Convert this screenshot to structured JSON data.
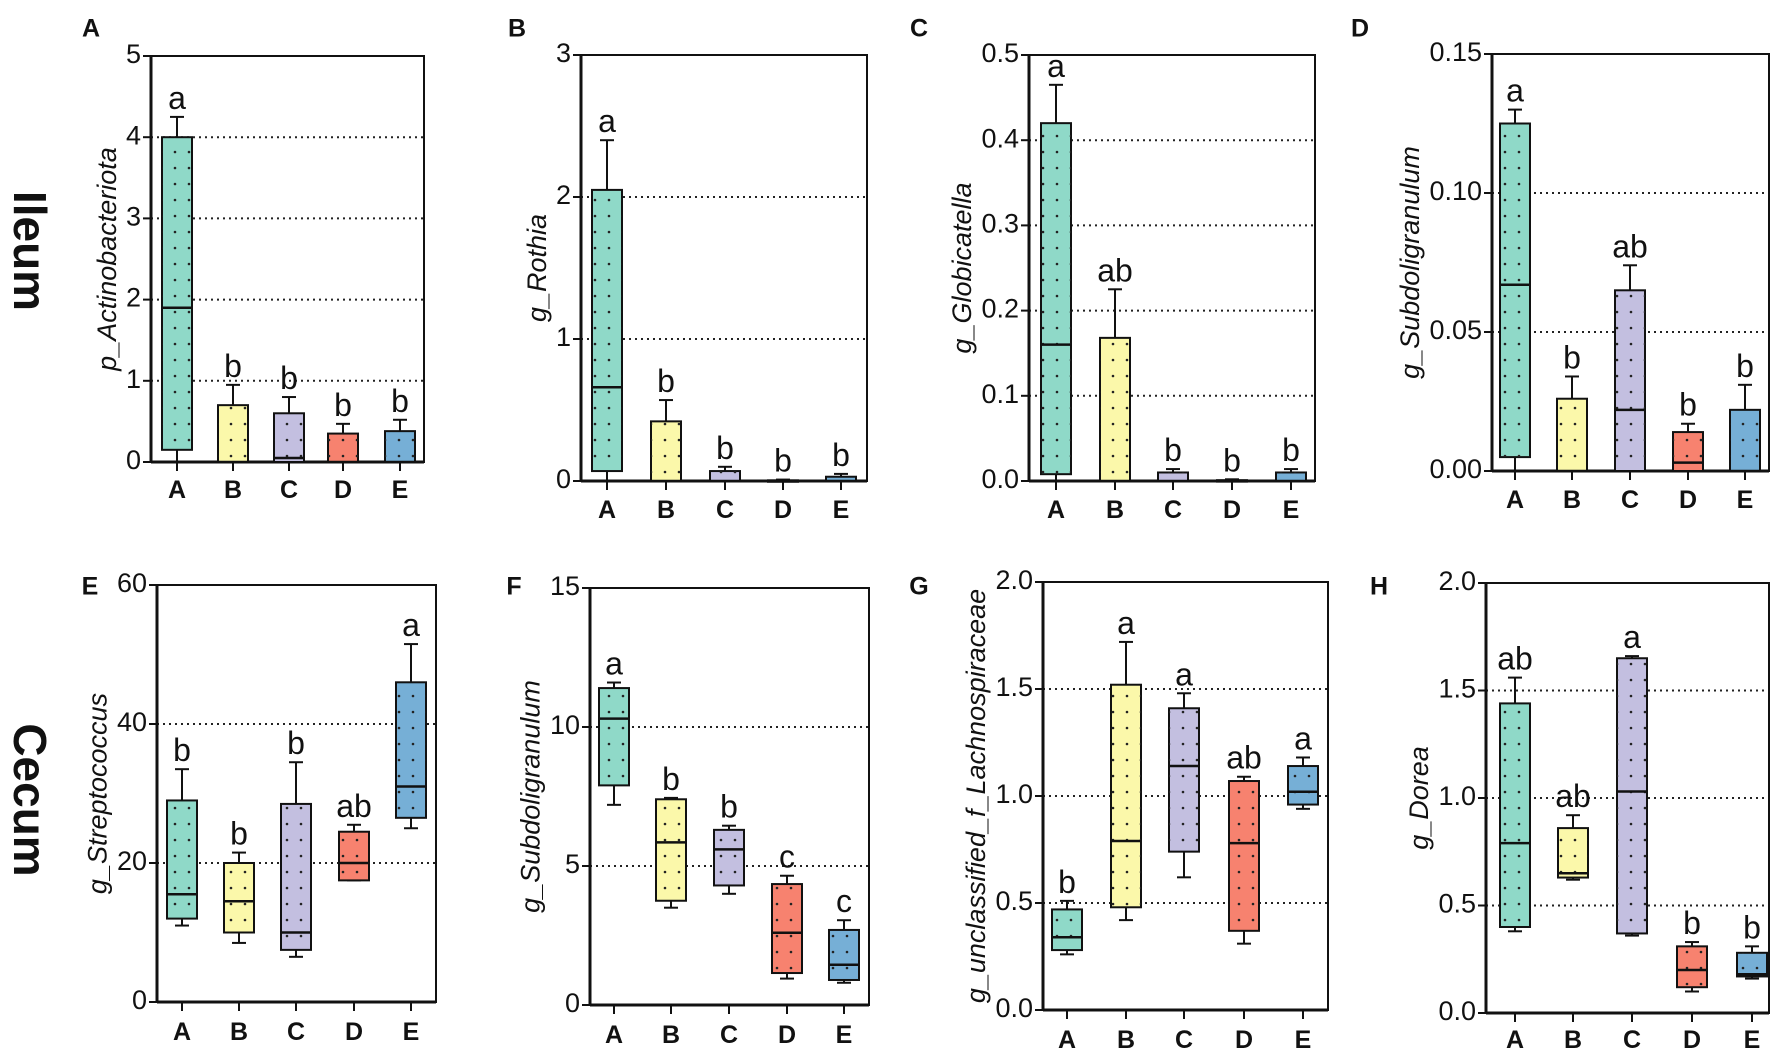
{
  "row_labels": [
    "Ileum",
    "Cecum"
  ],
  "group_colors": {
    "A": "#8fd9c8",
    "B": "#fbf8aa",
    "C": "#c3bfe0",
    "D": "#f7826f",
    "E": "#76afd6"
  },
  "chart_data": [
    {
      "type": "box",
      "panel": "A",
      "ylabel": "p_Actinobacteriota",
      "ylim": [
        0,
        5
      ],
      "yticks": [
        "0",
        "1",
        "2",
        "3",
        "4",
        "5"
      ],
      "ytick_values": [
        0,
        1,
        2,
        3,
        4,
        5
      ],
      "grid": [
        1,
        2,
        3,
        4
      ],
      "categories": [
        "A",
        "B",
        "C",
        "D",
        "E"
      ],
      "boxes": [
        {
          "min": 0,
          "q1": 0.15,
          "median": 1.9,
          "q3": 4.0,
          "max": 4.25,
          "letter": "a"
        },
        {
          "min": 0,
          "q1": 0,
          "median": 0,
          "q3": 0.7,
          "max": 0.95,
          "letter": "b"
        },
        {
          "min": 0,
          "q1": 0,
          "median": 0.05,
          "q3": 0.6,
          "max": 0.8,
          "letter": "b"
        },
        {
          "min": 0,
          "q1": 0,
          "median": 0,
          "q3": 0.35,
          "max": 0.47,
          "letter": "b"
        },
        {
          "min": 0,
          "q1": 0,
          "median": 0,
          "q3": 0.38,
          "max": 0.52,
          "letter": "b"
        }
      ]
    },
    {
      "type": "box",
      "panel": "B",
      "ylabel": "g_Rothia",
      "ylim": [
        0,
        3
      ],
      "yticks": [
        "0",
        "1",
        "2",
        "3"
      ],
      "ytick_values": [
        0,
        1,
        2,
        3
      ],
      "grid": [
        1,
        2
      ],
      "categories": [
        "A",
        "B",
        "C",
        "D",
        "E"
      ],
      "boxes": [
        {
          "min": 0,
          "q1": 0.07,
          "median": 0.66,
          "q3": 2.05,
          "max": 2.4,
          "letter": "a"
        },
        {
          "min": 0,
          "q1": 0,
          "median": 0,
          "q3": 0.42,
          "max": 0.57,
          "letter": "b"
        },
        {
          "min": 0,
          "q1": 0,
          "median": 0,
          "q3": 0.07,
          "max": 0.1,
          "letter": "b"
        },
        {
          "min": 0,
          "q1": 0,
          "median": 0,
          "q3": 0.005,
          "max": 0.01,
          "letter": "b"
        },
        {
          "min": 0,
          "q1": 0,
          "median": 0,
          "q3": 0.03,
          "max": 0.05,
          "letter": "b"
        }
      ]
    },
    {
      "type": "box",
      "panel": "C",
      "ylabel": "g_Globicatella",
      "ylim": [
        0,
        0.5
      ],
      "yticks": [
        "0.0",
        "0.1",
        "0.2",
        "0.3",
        "0.4",
        "0.5"
      ],
      "ytick_values": [
        0,
        0.1,
        0.2,
        0.3,
        0.4,
        0.5
      ],
      "grid": [
        0.1,
        0.2,
        0.3,
        0.4
      ],
      "categories": [
        "A",
        "B",
        "C",
        "D",
        "E"
      ],
      "boxes": [
        {
          "min": 0,
          "q1": 0.008,
          "median": 0.16,
          "q3": 0.42,
          "max": 0.465,
          "letter": "a"
        },
        {
          "min": 0,
          "q1": 0,
          "median": 0,
          "q3": 0.168,
          "max": 0.225,
          "letter": "ab"
        },
        {
          "min": 0,
          "q1": 0,
          "median": 0,
          "q3": 0.01,
          "max": 0.014,
          "letter": "b"
        },
        {
          "min": 0,
          "q1": 0,
          "median": 0,
          "q3": 0.001,
          "max": 0.002,
          "letter": "b"
        },
        {
          "min": 0,
          "q1": 0,
          "median": 0,
          "q3": 0.01,
          "max": 0.014,
          "letter": "b"
        }
      ]
    },
    {
      "type": "box",
      "panel": "D",
      "ylabel": "g_Subdoligranulum",
      "ylim": [
        0,
        0.15
      ],
      "yticks": [
        "0.00",
        "0.05",
        "0.10",
        "0.15"
      ],
      "ytick_values": [
        0,
        0.05,
        0.1,
        0.15
      ],
      "grid": [
        0.05,
        0.1
      ],
      "categories": [
        "A",
        "B",
        "C",
        "D",
        "E"
      ],
      "boxes": [
        {
          "min": 0,
          "q1": 0.005,
          "median": 0.067,
          "q3": 0.125,
          "max": 0.13,
          "letter": "a"
        },
        {
          "min": 0,
          "q1": 0,
          "median": 0,
          "q3": 0.026,
          "max": 0.034,
          "letter": "b"
        },
        {
          "min": 0,
          "q1": 0,
          "median": 0.022,
          "q3": 0.065,
          "max": 0.074,
          "letter": "ab"
        },
        {
          "min": 0,
          "q1": 0,
          "median": 0.003,
          "q3": 0.014,
          "max": 0.017,
          "letter": "b"
        },
        {
          "min": 0,
          "q1": 0,
          "median": 0,
          "q3": 0.022,
          "max": 0.031,
          "letter": "b"
        }
      ]
    },
    {
      "type": "box",
      "panel": "E",
      "ylabel": "g_Streptococcus",
      "ylim": [
        0,
        60
      ],
      "yticks": [
        "0",
        "20",
        "40",
        "60"
      ],
      "ytick_values": [
        0,
        20,
        40,
        60
      ],
      "grid": [
        20,
        40
      ],
      "categories": [
        "A",
        "B",
        "C",
        "D",
        "E"
      ],
      "boxes": [
        {
          "min": 11,
          "q1": 12,
          "median": 15.5,
          "q3": 29,
          "max": 33.5,
          "letter": "b"
        },
        {
          "min": 8.5,
          "q1": 10,
          "median": 14.5,
          "q3": 20,
          "max": 21.5,
          "letter": "b"
        },
        {
          "min": 6.5,
          "q1": 7.5,
          "median": 10,
          "q3": 28.5,
          "max": 34.5,
          "letter": "b"
        },
        {
          "min": 17.5,
          "q1": 17.5,
          "median": 20,
          "q3": 24.5,
          "max": 25.5,
          "letter": "ab"
        },
        {
          "min": 25,
          "q1": 26.5,
          "median": 31,
          "q3": 46,
          "max": 51.5,
          "letter": "a"
        }
      ]
    },
    {
      "type": "box",
      "panel": "F",
      "ylabel": "g_Subdoligranulum",
      "ylim": [
        0,
        15
      ],
      "yticks": [
        "0",
        "5",
        "10",
        "15"
      ],
      "ytick_values": [
        0,
        5,
        10,
        15
      ],
      "grid": [
        5,
        10
      ],
      "categories": [
        "A",
        "B",
        "C",
        "D",
        "E"
      ],
      "boxes": [
        {
          "min": 7.2,
          "q1": 7.9,
          "median": 10.3,
          "q3": 11.4,
          "max": 11.6,
          "letter": "a"
        },
        {
          "min": 3.5,
          "q1": 3.75,
          "median": 5.85,
          "q3": 7.4,
          "max": 7.45,
          "letter": "b"
        },
        {
          "min": 4.0,
          "q1": 4.3,
          "median": 5.6,
          "q3": 6.3,
          "max": 6.45,
          "letter": "b"
        },
        {
          "min": 0.95,
          "q1": 1.15,
          "median": 2.6,
          "q3": 4.35,
          "max": 4.65,
          "letter": "c"
        },
        {
          "min": 0.8,
          "q1": 0.9,
          "median": 1.45,
          "q3": 2.7,
          "max": 3.05,
          "letter": "c"
        }
      ]
    },
    {
      "type": "box",
      "panel": "G",
      "ylabel": "g_unclassified_f_Lachnospiraceae",
      "ylim": [
        0,
        2
      ],
      "yticks": [
        "0.0",
        "0.5",
        "1.0",
        "1.5",
        "2.0"
      ],
      "ytick_values": [
        0,
        0.5,
        1,
        1.5,
        2
      ],
      "grid": [
        0.5,
        1,
        1.5
      ],
      "categories": [
        "A",
        "B",
        "C",
        "D",
        "E"
      ],
      "boxes": [
        {
          "min": 0.26,
          "q1": 0.28,
          "median": 0.34,
          "q3": 0.47,
          "max": 0.51,
          "letter": "b"
        },
        {
          "min": 0.42,
          "q1": 0.48,
          "median": 0.79,
          "q3": 1.52,
          "max": 1.72,
          "letter": "a"
        },
        {
          "min": 0.62,
          "q1": 0.74,
          "median": 1.14,
          "q3": 1.41,
          "max": 1.48,
          "letter": "a"
        },
        {
          "min": 0.31,
          "q1": 0.37,
          "median": 0.78,
          "q3": 1.07,
          "max": 1.09,
          "letter": "ab"
        },
        {
          "min": 0.94,
          "q1": 0.96,
          "median": 1.02,
          "q3": 1.14,
          "max": 1.18,
          "letter": "a"
        }
      ]
    },
    {
      "type": "box",
      "panel": "H",
      "ylabel": "g_Dorea",
      "ylim": [
        0,
        2
      ],
      "yticks": [
        "0.0",
        "0.5",
        "1.0",
        "1.5",
        "2.0"
      ],
      "ytick_values": [
        0,
        0.5,
        1,
        1.5,
        2
      ],
      "grid": [
        0.5,
        1,
        1.5
      ],
      "categories": [
        "A",
        "B",
        "C",
        "D",
        "E"
      ],
      "boxes": [
        {
          "min": 0.38,
          "q1": 0.4,
          "median": 0.79,
          "q3": 1.44,
          "max": 1.56,
          "letter": "ab"
        },
        {
          "min": 0.62,
          "q1": 0.63,
          "median": 0.65,
          "q3": 0.86,
          "max": 0.92,
          "letter": "ab"
        },
        {
          "min": 0.36,
          "q1": 0.37,
          "median": 1.03,
          "q3": 1.65,
          "max": 1.66,
          "letter": "a"
        },
        {
          "min": 0.1,
          "q1": 0.12,
          "median": 0.2,
          "q3": 0.31,
          "max": 0.33,
          "letter": "b"
        },
        {
          "min": 0.16,
          "q1": 0.17,
          "median": 0.18,
          "q3": 0.28,
          "max": 0.31,
          "letter": "b"
        }
      ]
    }
  ]
}
